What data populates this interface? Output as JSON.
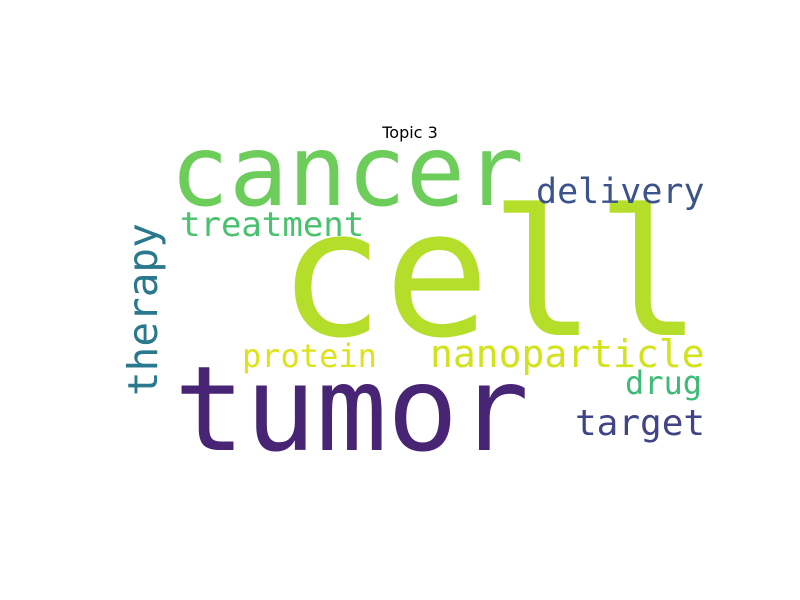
{
  "chart_data": {
    "type": "wordcloud",
    "title": "Topic 3",
    "words": [
      {
        "text": "cell",
        "weight": 1.0,
        "color": "#b5de2b"
      },
      {
        "text": "tumor",
        "weight": 0.86,
        "color": "#482475"
      },
      {
        "text": "cancer",
        "weight": 0.7,
        "color": "#6ccd5a"
      },
      {
        "text": "therapy",
        "weight": 0.24,
        "color": "#2a788e"
      },
      {
        "text": "nanoparticle",
        "weight": 0.24,
        "color": "#d2e21b"
      },
      {
        "text": "delivery",
        "weight": 0.22,
        "color": "#3b528b"
      },
      {
        "text": "treatment",
        "weight": 0.22,
        "color": "#4ac16d"
      },
      {
        "text": "target",
        "weight": 0.22,
        "color": "#414487"
      },
      {
        "text": "protein",
        "weight": 0.2,
        "color": "#dde318"
      },
      {
        "text": "drug",
        "weight": 0.2,
        "color": "#3bbb75"
      }
    ]
  }
}
